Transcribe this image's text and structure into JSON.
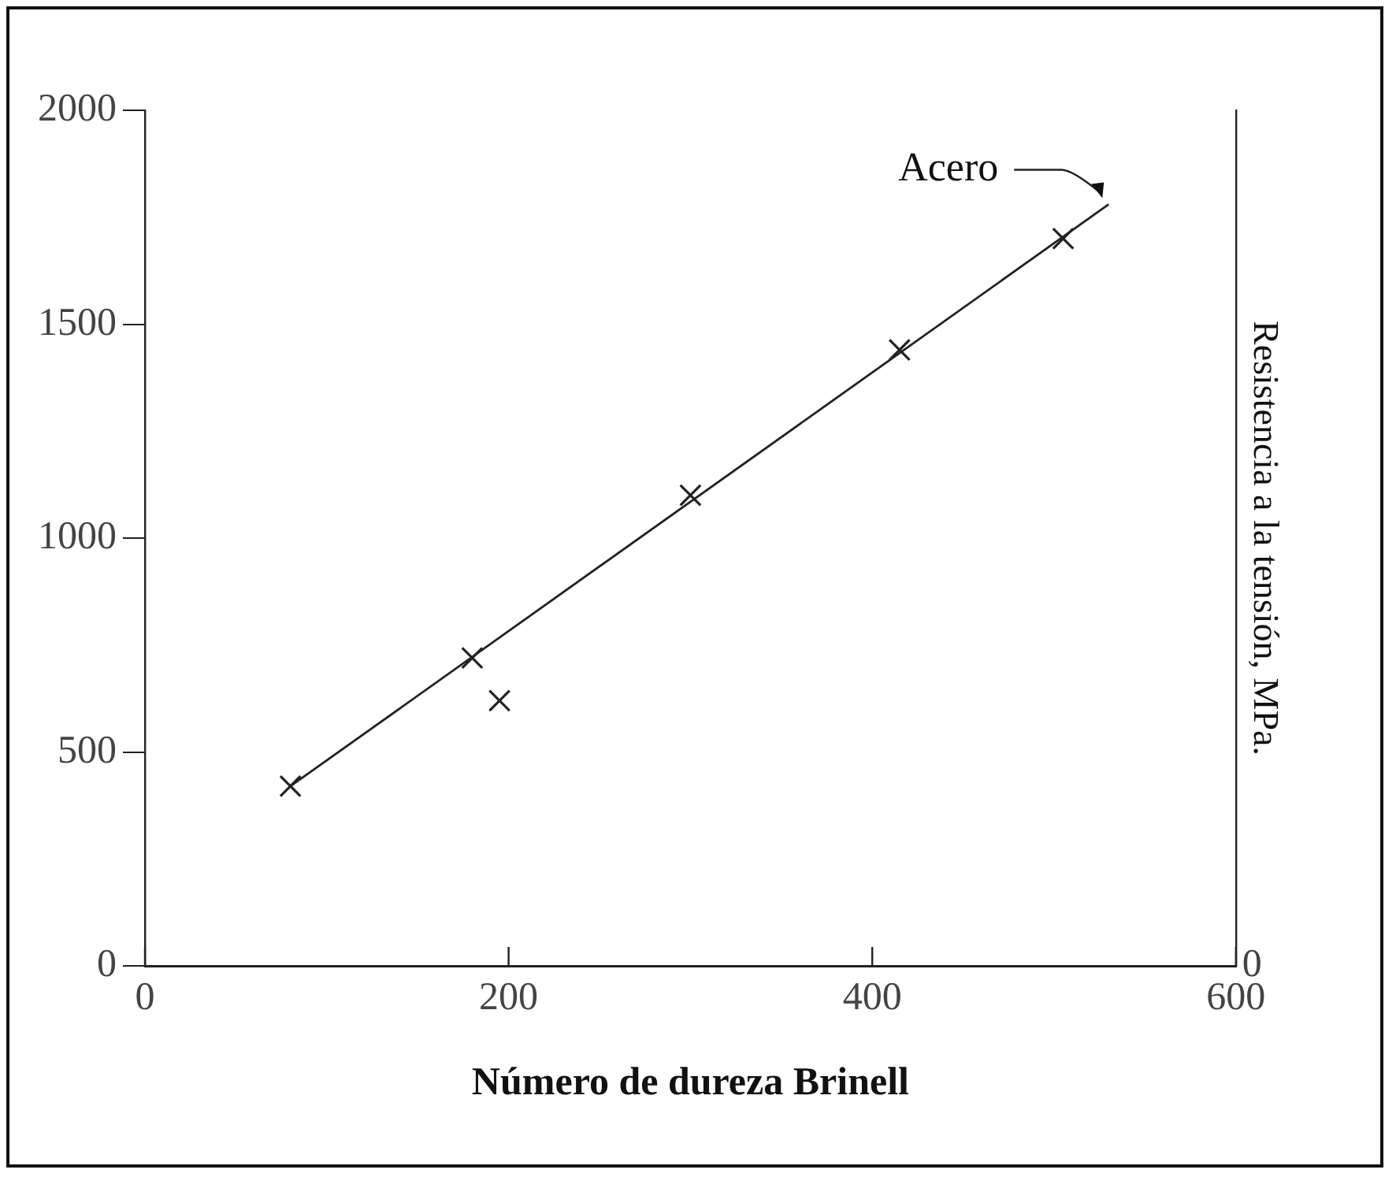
{
  "chart_data": {
    "type": "scatter",
    "xlabel": "Número de dureza Brinell",
    "y2label": "Resistencia a la tensión, MPa.",
    "xlim": [
      0,
      600
    ],
    "xticks": [
      0,
      200,
      400,
      600
    ],
    "ylim": [
      0,
      2000
    ],
    "yticks": [
      0,
      500,
      1000,
      1500,
      2000
    ],
    "grid": false,
    "legend": false,
    "marker": "cross",
    "series": [
      {
        "type": "scatter",
        "color": "#222222",
        "x": [
          80,
          180,
          195,
          300,
          415,
          505
        ],
        "values": [
          420,
          720,
          620,
          1100,
          1440,
          1700
        ]
      },
      {
        "type": "line",
        "color": "#222222",
        "marker": "none",
        "line_style": "solid",
        "x": [
          80,
          530
        ],
        "values": [
          420,
          1780
        ]
      }
    ],
    "annotations": [
      "Acero",
      "0"
    ]
  }
}
